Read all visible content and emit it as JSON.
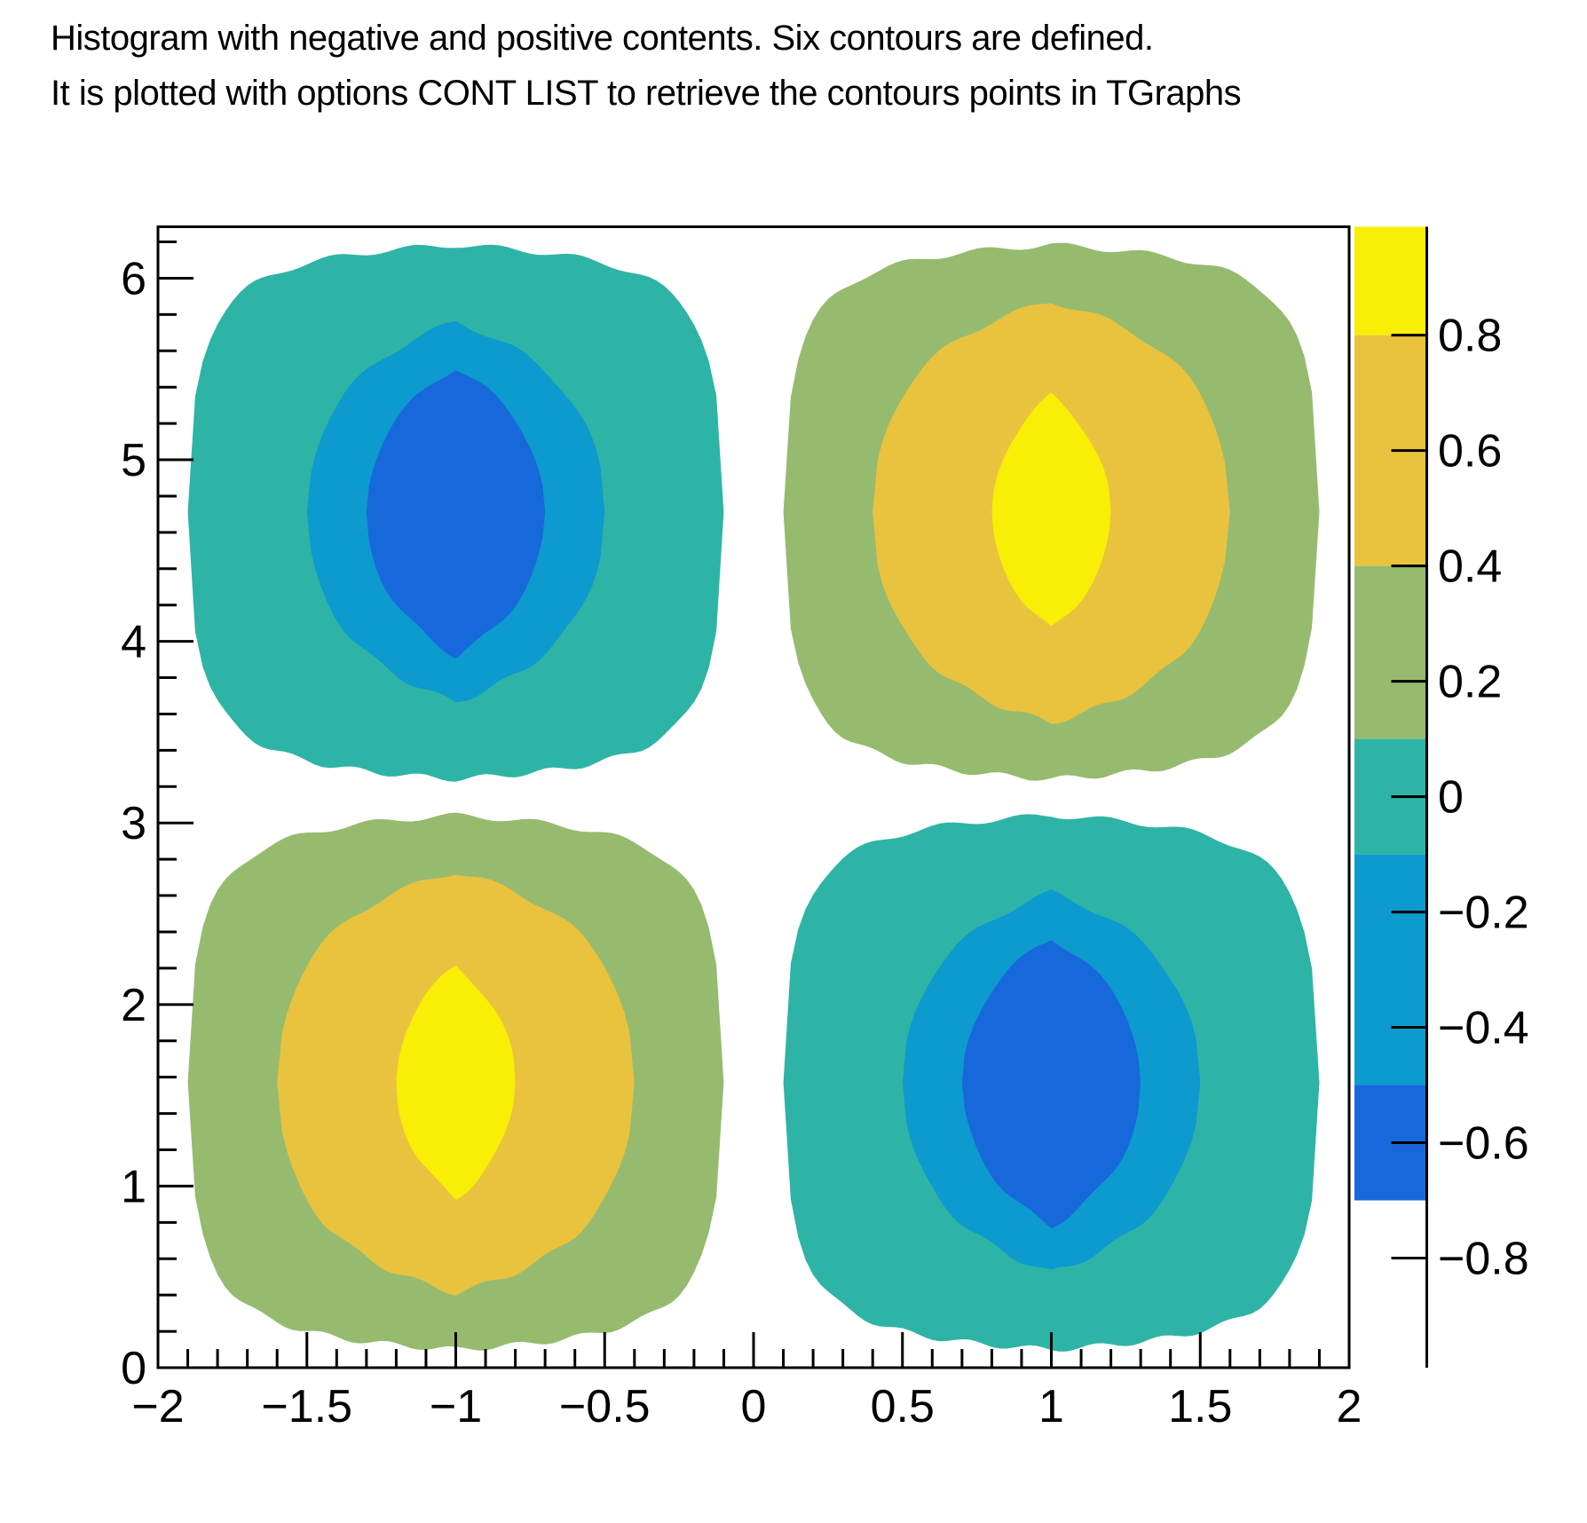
{
  "title": {
    "line1": "Histogram with negative and positive contents. Six contours are defined.",
    "line2": "It is plotted with options CONT LIST to retrieve the contours points in TGraphs"
  },
  "chart_data": {
    "type": "filled_contour",
    "description": "2D histogram (ROOT TH2 drawn with option CONT Z LIST): z = sawtooth(x) * sin(y); four lobes of alternating sign, six contour levels",
    "contour_levels": [
      -0.7,
      -0.5,
      -0.1,
      0.1,
      0.4,
      0.8
    ],
    "grid": false,
    "x_axis": {
      "min": -2,
      "max": 2,
      "major_step": 0.5,
      "minor_step": 0.1,
      "tick_values": [
        -2,
        -1.5,
        -1,
        -0.5,
        0,
        0.5,
        1,
        1.5,
        2
      ],
      "tick_labels": [
        "−2",
        "−1.5",
        "−1",
        "−0.5",
        "0",
        "0.5",
        "1",
        "1.5",
        "2"
      ]
    },
    "y_axis": {
      "min": 0,
      "max": 6.2832,
      "major_step": 1,
      "minor_step": 0.2,
      "tick_values": [
        0,
        1,
        2,
        3,
        4,
        5,
        6
      ],
      "tick_labels": [
        "0",
        "1",
        "2",
        "3",
        "4",
        "5",
        "6"
      ]
    },
    "z_axis": {
      "bar_min": -0.99,
      "bar_max": 0.988,
      "tick_values": [
        -0.8,
        -0.6,
        -0.4,
        -0.2,
        0,
        0.2,
        0.4,
        0.6,
        0.8
      ],
      "tick_labels": [
        "−0.8",
        "−0.6",
        "−0.4",
        "−0.2",
        "0",
        "0.2",
        "0.4",
        "0.6",
        "0.8"
      ]
    },
    "colors": {
      "blue": "#1769DB",
      "cyan": "#0D9ACE",
      "teal": "#2EB4A6",
      "green": "#96BB6F",
      "orange": "#E9C33E",
      "yellow": "#F9EE06",
      "frame": "#000000",
      "background": "#FFFFFF"
    },
    "palette_boxes": [
      {
        "from": -0.7,
        "to": -0.5,
        "color": "#1769DB"
      },
      {
        "from": -0.5,
        "to": -0.1,
        "color": "#0D9ACE"
      },
      {
        "from": -0.1,
        "to": 0.1,
        "color": "#2EB4A6"
      },
      {
        "from": 0.1,
        "to": 0.4,
        "color": "#96BB6F"
      },
      {
        "from": 0.4,
        "to": 0.8,
        "color": "#E9C33E"
      },
      {
        "from": 0.8,
        "to": 0.988,
        "color": "#F9EE06"
      }
    ],
    "blobs": [
      {
        "name": "bottom-left-positive",
        "cx": -1,
        "cy": 1.5708,
        "sign": 1,
        "rings": [
          {
            "level": 0.1,
            "color": "#96BB6F"
          },
          {
            "level": 0.4,
            "color": "#E9C33E"
          },
          {
            "level": 0.8,
            "color": "#F9EE06"
          }
        ]
      },
      {
        "name": "top-left-negative",
        "cx": -1,
        "cy": 4.7124,
        "sign": -1,
        "rings": [
          {
            "level": 0.1,
            "color": "#2EB4A6"
          },
          {
            "level": 0.5,
            "color": "#0D9ACE"
          },
          {
            "level": 0.7,
            "color": "#1769DB"
          }
        ]
      },
      {
        "name": "bottom-right-negative",
        "cx": 1,
        "cy": 1.5708,
        "sign": -1,
        "rings": [
          {
            "level": 0.1,
            "color": "#2EB4A6"
          },
          {
            "level": 0.5,
            "color": "#0D9ACE"
          },
          {
            "level": 0.7,
            "color": "#1769DB"
          }
        ]
      },
      {
        "name": "top-right-positive",
        "cx": 1,
        "cy": 4.7124,
        "sign": 1,
        "rings": [
          {
            "level": 0.1,
            "color": "#96BB6F"
          },
          {
            "level": 0.4,
            "color": "#E9C33E"
          },
          {
            "level": 0.8,
            "color": "#F9EE06"
          }
        ]
      }
    ]
  }
}
